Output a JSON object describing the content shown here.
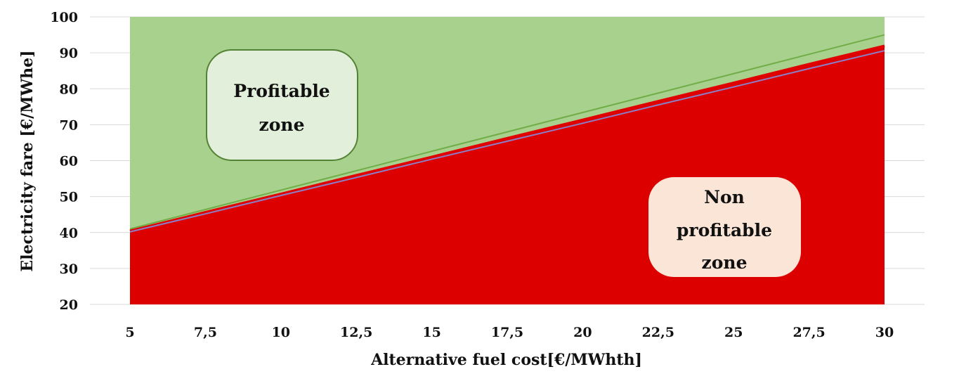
{
  "chart_data": {
    "type": "area",
    "xlabel": "Alternative fuel cost[€/MWhth]",
    "ylabel": "Electricity fare [€/MWhe]",
    "x": [
      5,
      7.5,
      10,
      12.5,
      15,
      17.5,
      20,
      22.5,
      25,
      27.5,
      30
    ],
    "x_tick_labels": [
      "5",
      "7,5",
      "10",
      "12,5",
      "15",
      "17,5",
      "20",
      "22,5",
      "25",
      "27,5",
      "30"
    ],
    "ylim": [
      20,
      100
    ],
    "y_ticks": [
      20,
      30,
      40,
      50,
      60,
      70,
      80,
      90,
      100
    ],
    "grid": true,
    "series": [
      {
        "role": "non-profitable-area",
        "values": [
          40,
          45,
          50,
          55,
          60,
          65,
          70,
          75,
          80,
          85,
          90
        ]
      },
      {
        "role": "boundary-red-line",
        "values": [
          40.4,
          45.6,
          50.7,
          55.9,
          61.0,
          66.2,
          71.3,
          76.5,
          81.6,
          86.8,
          91.9
        ]
      },
      {
        "role": "boundary-purple-line",
        "values": [
          40.2,
          45.2,
          50.3,
          55.3,
          60.4,
          65.4,
          70.4,
          75.5,
          80.5,
          85.6,
          90.6
        ]
      },
      {
        "role": "boundary-green-line",
        "values": [
          41.0,
          46.4,
          51.8,
          57.2,
          62.6,
          68.0,
          73.4,
          78.8,
          84.2,
          89.6,
          95.0
        ]
      }
    ],
    "annotations": [
      {
        "text_lines": [
          "Profitable",
          "zone"
        ]
      },
      {
        "text_lines": [
          "Non",
          "profitable",
          "zone"
        ]
      }
    ],
    "colors": {
      "profitable_fill": "#a9d18e",
      "non_profitable_fill": "#dc0000",
      "red_line": "#e00000",
      "purple_line": "#8c7fc7",
      "green_line": "#70ad47",
      "profitable_box_fill": "#e2efda",
      "profitable_box_stroke": "#548235",
      "non_profitable_box_fill": "#fbe5d6",
      "grid": "#d9d9d9"
    }
  }
}
